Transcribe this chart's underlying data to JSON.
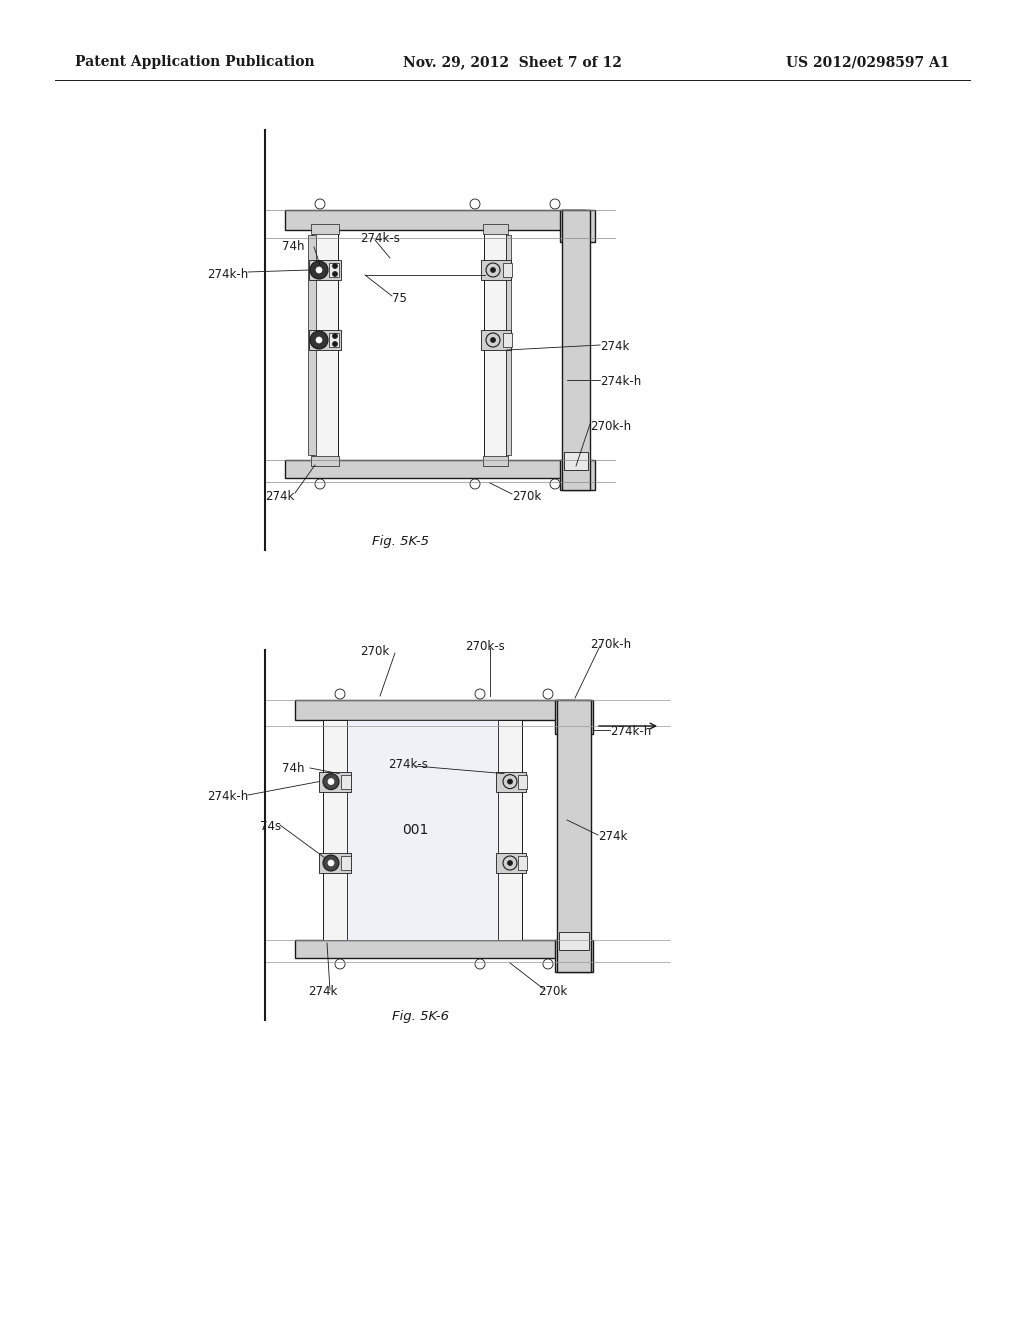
{
  "background_color": "#ffffff",
  "line_color": "#1a1a1a",
  "header": {
    "left": "Patent Application Publication",
    "center": "Nov. 29, 2012  Sheet 7 of 12",
    "right": "US 2012/0298597 A1",
    "font_size": 10
  },
  "fig1_caption": "Fig. 5K-5",
  "fig2_caption": "Fig. 5K-6"
}
